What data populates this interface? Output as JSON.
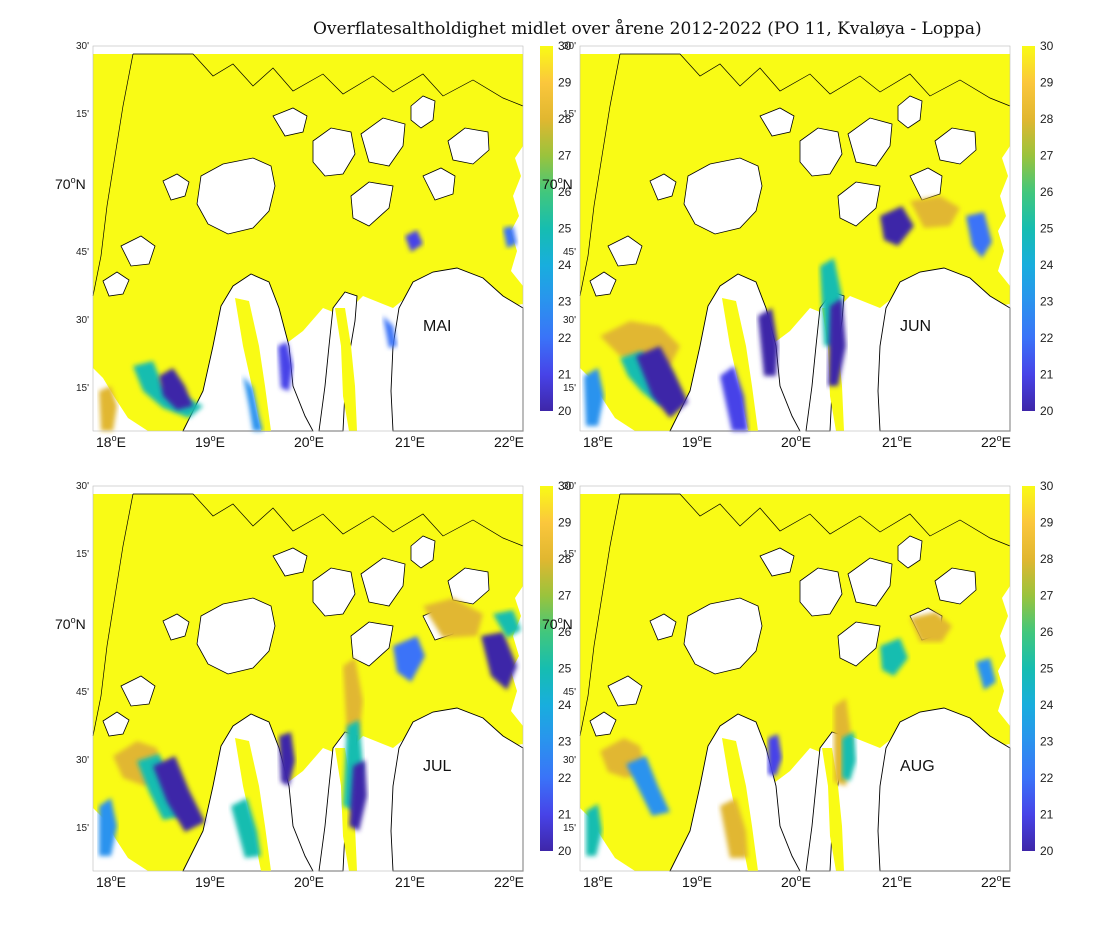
{
  "title": "Overflatesaltholdighet midlet over årene 2012-2022 (PO 11, Kvaløya - Loppa)",
  "lon_labels": [
    "18",
    "19",
    "20",
    "21",
    "22"
  ],
  "lon_suffix": "E",
  "lat_label_main": "70",
  "lat_suffix": "N",
  "minute_labels": [
    "30'",
    "15'",
    "45'",
    "30'",
    "15'"
  ],
  "degree_sign": "o",
  "colorbar_ticks": [
    "30",
    "29",
    "28",
    "27",
    "26",
    "25",
    "24",
    "23",
    "22",
    "21",
    "20"
  ],
  "colors": {
    "c20": "#3e26a8",
    "c21": "#4743e8",
    "c22": "#3a73f8",
    "c23": "#2a93ee",
    "c24": "#18aedd",
    "c25": "#16bdb0",
    "c26": "#42c77c",
    "c27": "#9ac33c",
    "c28": "#e1b730",
    "c29": "#fbc73c",
    "c30": "#f9fb15"
  },
  "panels": [
    {
      "month": "MAI"
    },
    {
      "month": "JUN"
    },
    {
      "month": "JUL"
    },
    {
      "month": "AUG"
    }
  ]
}
